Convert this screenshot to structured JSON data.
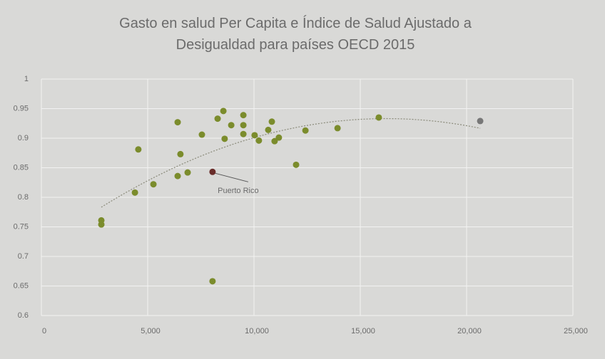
{
  "chart_data": {
    "type": "scatter",
    "title": "Gasto en salud Per Capita e Índice de Salud Ajustado a Desigualdad para países OECD 2015",
    "x": [
      2820,
      2820,
      4400,
      4560,
      5270,
      6410,
      6410,
      6540,
      6880,
      7550,
      8050,
      8050,
      8290,
      8560,
      8620,
      8930,
      9500,
      9500,
      9500,
      10030,
      10230,
      10670,
      10840,
      10970,
      11170,
      11980,
      12420,
      13930,
      15870,
      20640
    ],
    "values": [
      0.761,
      0.754,
      0.808,
      0.881,
      0.822,
      0.927,
      0.836,
      0.873,
      0.842,
      0.906,
      0.843,
      0.658,
      0.933,
      0.946,
      0.899,
      0.922,
      0.939,
      0.922,
      0.907,
      0.905,
      0.896,
      0.914,
      0.928,
      0.895,
      0.901,
      0.855,
      0.913,
      0.917,
      0.935,
      0.929
    ],
    "colors": [
      "#7b8c2c",
      "#7b8c2c",
      "#7b8c2c",
      "#7b8c2c",
      "#7b8c2c",
      "#7b8c2c",
      "#7b8c2c",
      "#7b8c2c",
      "#7b8c2c",
      "#7b8c2c",
      "#6a2d2a",
      "#7b8c2c",
      "#7b8c2c",
      "#7b8c2c",
      "#7b8c2c",
      "#7b8c2c",
      "#7b8c2c",
      "#7b8c2c",
      "#7b8c2c",
      "#7b8c2c",
      "#7b8c2c",
      "#7b8c2c",
      "#7b8c2c",
      "#7b8c2c",
      "#7b8c2c",
      "#7b8c2c",
      "#7b8c2c",
      "#7b8c2c",
      "#7b8c2c",
      "#777777"
    ],
    "annotations": [
      {
        "text": "Puerto Rico",
        "point": 10
      }
    ],
    "trendline": "polynomial",
    "xlim": [
      0,
      25000
    ],
    "xticks": [
      0,
      {
        "value": 5000,
        "label": "5,000"
      },
      {
        "value": 10000,
        "label": "10,000"
      },
      {
        "value": 15000,
        "label": "15,000"
      },
      {
        "value": 20000,
        "label": "20,000"
      },
      {
        "value": 25000,
        "label": "25,000"
      }
    ],
    "ylim": [
      0.6,
      1
    ],
    "yticks": [
      0.6,
      0.65,
      0.7,
      0.75,
      0.8,
      0.85,
      0.9,
      0.95,
      1
    ],
    "grid": true
  }
}
